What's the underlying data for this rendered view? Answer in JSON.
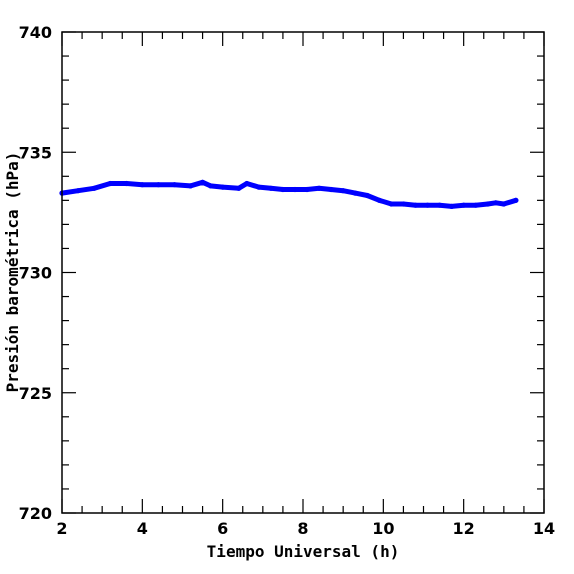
{
  "chart_data": {
    "type": "line",
    "title": "",
    "xlabel": "Tiempo Universal (h)",
    "ylabel": "Presión barométrica (hPa)",
    "xlim": [
      2,
      14
    ],
    "ylim": [
      720,
      740
    ],
    "x_ticks": [
      2,
      4,
      6,
      8,
      10,
      12,
      14
    ],
    "y_ticks": [
      720,
      725,
      730,
      735,
      740
    ],
    "grid": false,
    "series": [
      {
        "color": "#0000ff",
        "x": [
          2.0,
          2.4,
          2.8,
          3.2,
          3.6,
          4.0,
          4.4,
          4.8,
          5.2,
          5.5,
          5.7,
          6.0,
          6.4,
          6.6,
          6.9,
          7.2,
          7.5,
          7.8,
          8.1,
          8.4,
          8.7,
          9.0,
          9.3,
          9.6,
          9.9,
          10.2,
          10.5,
          10.8,
          11.1,
          11.4,
          11.7,
          12.0,
          12.3,
          12.6,
          12.8,
          13.0,
          13.3
        ],
        "values": [
          733.3,
          733.4,
          733.5,
          733.7,
          733.7,
          733.65,
          733.65,
          733.65,
          733.6,
          733.75,
          733.6,
          733.55,
          733.5,
          733.7,
          733.55,
          733.5,
          733.45,
          733.45,
          733.45,
          733.5,
          733.45,
          733.4,
          733.3,
          733.2,
          733.0,
          732.85,
          732.85,
          732.8,
          732.8,
          732.8,
          732.75,
          732.8,
          732.8,
          732.85,
          732.9,
          732.85,
          733.0
        ]
      }
    ]
  }
}
